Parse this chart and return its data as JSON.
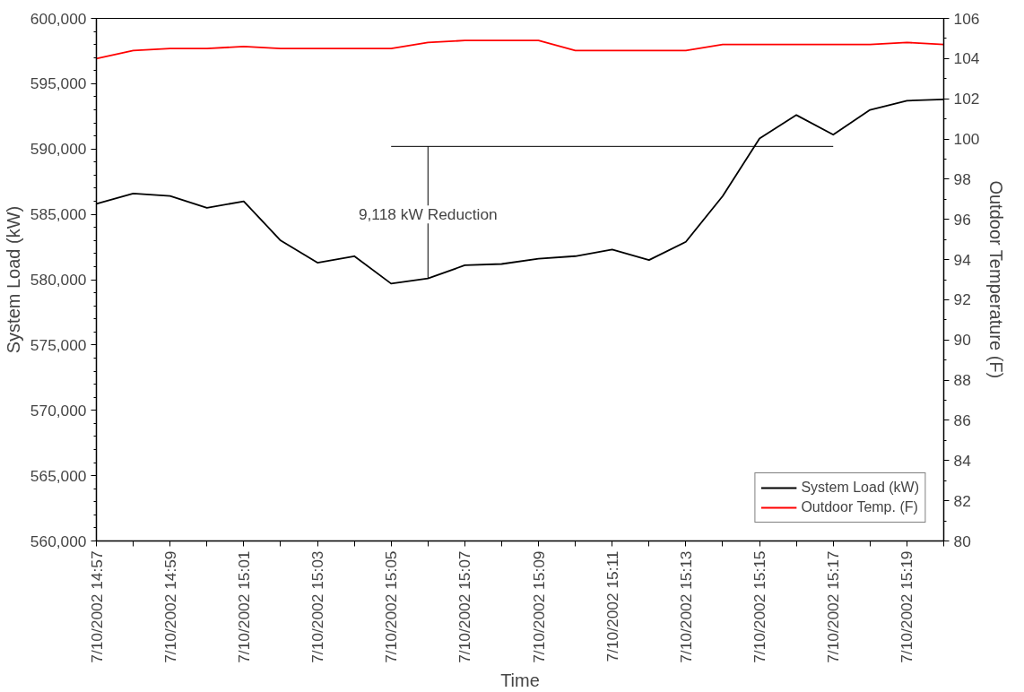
{
  "chart_data": {
    "type": "line",
    "xlabel": "Time",
    "ylabel": "System Load (kW)",
    "y2label": "Outdoor Temperature (F)",
    "x": [
      "2002-07-10T14:57",
      "2002-07-10T14:58",
      "2002-07-10T14:59",
      "2002-07-10T15:00",
      "2002-07-10T15:01",
      "2002-07-10T15:02",
      "2002-07-10T15:03",
      "2002-07-10T15:04",
      "2002-07-10T15:05",
      "2002-07-10T15:06",
      "2002-07-10T15:07",
      "2002-07-10T15:08",
      "2002-07-10T15:09",
      "2002-07-10T15:10",
      "2002-07-10T15:11",
      "2002-07-10T15:12",
      "2002-07-10T15:13",
      "2002-07-10T15:14",
      "2002-07-10T15:15",
      "2002-07-10T15:16",
      "2002-07-10T15:17",
      "2002-07-10T15:18",
      "2002-07-10T15:19",
      "2002-07-10T15:20"
    ],
    "series": [
      {
        "name": "System Load (kW)",
        "color": "#000000",
        "values": [
          585800,
          586600,
          586400,
          585500,
          586000,
          583000,
          581300,
          581800,
          579700,
          580100,
          581100,
          581200,
          581600,
          581800,
          582300,
          581500,
          582900,
          586400,
          590800,
          592600,
          591100,
          593000,
          593700,
          593800
        ]
      },
      {
        "name": "Outdoor Temp. (F)",
        "color": "#ff0000",
        "axis": "y2",
        "values": [
          104.0,
          104.4,
          104.5,
          104.5,
          104.6,
          104.5,
          104.5,
          104.5,
          104.5,
          104.8,
          104.9,
          104.9,
          104.9,
          104.4,
          104.4,
          104.4,
          104.4,
          104.7,
          104.7,
          104.7,
          104.7,
          104.7,
          104.8,
          104.7
        ]
      },
      {
        "color": "#000000",
        "x": [
          "2002-07-10T15:05",
          "2002-07-10T15:17"
        ],
        "values": [
          590200,
          590200
        ]
      },
      {
        "color": "#000000",
        "x": [
          "2002-07-10T15:06",
          "2002-07-10T15:06"
        ],
        "values": [
          590200,
          580100
        ]
      }
    ],
    "annotations": [
      {
        "text": "9,118 kW Reduction",
        "x": "2002-07-10T15:06",
        "y": 585000
      }
    ],
    "xlim": [
      "2002-07-10T14:57",
      "2002-07-10T15:20"
    ],
    "xticks": [
      {
        "value": "2002-07-10T14:57",
        "label": "7/10/2002 14:57"
      },
      {
        "value": "2002-07-10T14:58",
        "label": null
      },
      {
        "value": "2002-07-10T14:59",
        "label": "7/10/2002 14:59"
      },
      {
        "value": "2002-07-10T15:00",
        "label": null
      },
      {
        "value": "2002-07-10T15:01",
        "label": "7/10/2002 15:01"
      },
      {
        "value": "2002-07-10T15:02",
        "label": null
      },
      {
        "value": "2002-07-10T15:03",
        "label": "7/10/2002 15:03"
      },
      {
        "value": "2002-07-10T15:04",
        "label": null
      },
      {
        "value": "2002-07-10T15:05",
        "label": "7/10/2002 15:05"
      },
      {
        "value": "2002-07-10T15:06",
        "label": null
      },
      {
        "value": "2002-07-10T15:07",
        "label": "7/10/2002 15:07"
      },
      {
        "value": "2002-07-10T15:08",
        "label": null
      },
      {
        "value": "2002-07-10T15:09",
        "label": "7/10/2002 15:09"
      },
      {
        "value": "2002-07-10T15:10",
        "label": null
      },
      {
        "value": "2002-07-10T15:11",
        "label": "7/10/2002 15:11"
      },
      {
        "value": "2002-07-10T15:12",
        "label": null
      },
      {
        "value": "2002-07-10T15:13",
        "label": "7/10/2002 15:13"
      },
      {
        "value": "2002-07-10T15:14",
        "label": null
      },
      {
        "value": "2002-07-10T15:15",
        "label": "7/10/2002 15:15"
      },
      {
        "value": "2002-07-10T15:16",
        "label": null
      },
      {
        "value": "2002-07-10T15:17",
        "label": "7/10/2002 15:17"
      },
      {
        "value": "2002-07-10T15:18",
        "label": null
      },
      {
        "value": "2002-07-10T15:19",
        "label": "7/10/2002 15:19"
      },
      {
        "value": "2002-07-10T15:20",
        "label": null
      }
    ],
    "ylim": [
      560000,
      600000
    ],
    "yticks": [
      {
        "value": 560000,
        "label": "560,000"
      },
      {
        "value": 565000,
        "label": "565,000"
      },
      {
        "value": 570000,
        "label": "570,000"
      },
      {
        "value": 575000,
        "label": "575,000"
      },
      {
        "value": 580000,
        "label": "580,000"
      },
      {
        "value": 585000,
        "label": "585,000"
      },
      {
        "value": 590000,
        "label": "590,000"
      },
      {
        "value": 595000,
        "label": "595,000"
      },
      {
        "value": 600000,
        "label": "600,000"
      }
    ],
    "y2lim": [
      80,
      106
    ],
    "y2ticks": [
      80,
      82,
      84,
      86,
      88,
      90,
      92,
      94,
      96,
      98,
      100,
      102,
      104,
      106
    ],
    "grid": false,
    "legend": "bottom right",
    "marker": "none",
    "line_style": "solid"
  }
}
